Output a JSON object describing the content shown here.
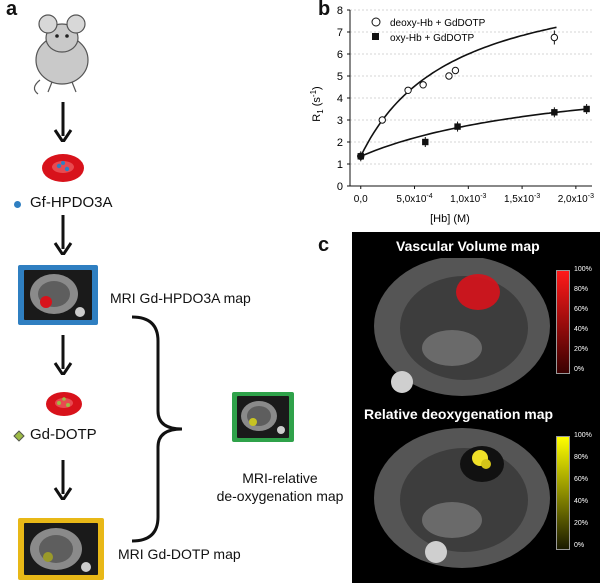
{
  "panels": {
    "a": "a",
    "b": "b",
    "c": "c"
  },
  "panel_a": {
    "agent1_label": "Gf-HPDO3A",
    "agent2_label": "Gd-DOTP",
    "map1_label": "MRI Gd-HPDO3A map",
    "map2_label": "MRI Gd-DOTP map",
    "result_label_line1": "MRI-relative",
    "result_label_line2": "de-oxygenation map",
    "colors": {
      "map1_frame": "#2f7fc1",
      "map2_frame": "#e8b817",
      "result_frame": "#2fa24a",
      "cell": "#d8121b"
    }
  },
  "panel_c": {
    "top_title": "Vascular Volume map",
    "bottom_title": "Relative deoxygenation map",
    "top_cbar": [
      "100%",
      "80%",
      "60%",
      "40%",
      "20%",
      "0%"
    ],
    "bottom_cbar": [
      "100%",
      "80%",
      "60%",
      "40%",
      "20%",
      "0%"
    ]
  },
  "chart_data": {
    "type": "scatter",
    "xlabel": "[Hb] (M)",
    "ylabel": "R1 (s-1)",
    "xlim": [
      -0.0001,
      0.00215
    ],
    "ylim": [
      0,
      8
    ],
    "x_ticks": [
      "0,0",
      "5,0x10-4",
      "1,0x10-3",
      "1,5x10-3",
      "2,0x10-3"
    ],
    "y_ticks": [
      "0",
      "1",
      "2",
      "3",
      "4",
      "5",
      "6",
      "7",
      "8"
    ],
    "legend_position": "top-left",
    "series": [
      {
        "name": "deoxy-Hb + GdDOTP",
        "marker": "open-circle",
        "x": [
          0.0,
          0.0002,
          0.00044,
          0.00058,
          0.00082,
          0.00088,
          0.0018
        ],
        "y": [
          1.35,
          3.0,
          4.35,
          4.6,
          5.0,
          5.25,
          6.75
        ]
      },
      {
        "name": "oxy-Hb + GdDOTP",
        "marker": "filled-square",
        "x": [
          0.0,
          0.0006,
          0.0009,
          0.0018,
          0.0021
        ],
        "y": [
          1.35,
          2.0,
          2.7,
          3.35,
          3.5
        ]
      }
    ]
  }
}
